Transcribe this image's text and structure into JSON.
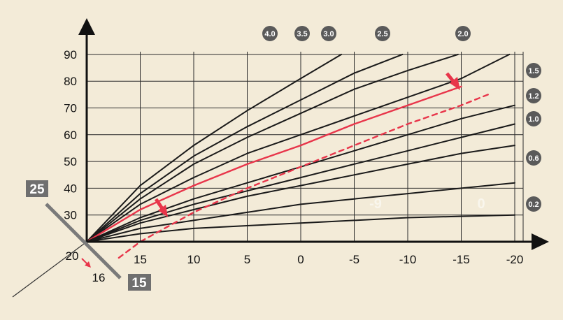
{
  "chart_data": {
    "type": "line",
    "title": "",
    "xlabel": "",
    "ylabel": "",
    "x_ticks": [
      15,
      10,
      5,
      0,
      -5,
      -10,
      -15,
      -20
    ],
    "y_ticks": [
      90,
      80,
      70,
      60,
      50,
      40,
      30
    ],
    "x_tick_labels": [
      "15",
      "10",
      "5",
      "0",
      "-5",
      "-10",
      "-15",
      "-20"
    ],
    "y_tick_labels": [
      "90",
      "80",
      "70",
      "60",
      "50",
      "40",
      "30"
    ],
    "xlim": [
      20,
      -20
    ],
    "ylim": [
      20,
      90
    ],
    "grid": true,
    "origin": {
      "x": 20,
      "y": 20
    },
    "series": [
      {
        "name": "4.0",
        "color": "#1a1a1a",
        "style": "solid",
        "x": [
          20,
          15,
          10,
          5,
          0,
          -3.8
        ],
        "y": [
          20,
          41,
          56,
          69,
          81,
          90
        ]
      },
      {
        "name": "3.5",
        "color": "#1a1a1a",
        "style": "solid",
        "x": [
          20,
          15,
          10,
          5,
          0,
          -5,
          -9.5
        ],
        "y": [
          20,
          38,
          52,
          63,
          73,
          83,
          90
        ]
      },
      {
        "name": "3.0",
        "color": "#1a1a1a",
        "style": "solid",
        "x": [
          20,
          15,
          10,
          5,
          0,
          -5,
          -10,
          -14.7
        ],
        "y": [
          20,
          36,
          49,
          59,
          68,
          77,
          84,
          90
        ]
      },
      {
        "name": "2.5",
        "color": "#1a1a1a",
        "style": "solid",
        "x": [
          20,
          15,
          10,
          5,
          0,
          -5,
          -10,
          -15,
          -19.5
        ],
        "y": [
          20,
          34,
          44,
          53,
          60,
          67,
          74,
          81,
          90
        ]
      },
      {
        "name": "2.0",
        "color": "#e8354a",
        "style": "solid",
        "x": [
          20,
          15,
          10,
          5,
          0,
          -5,
          -10,
          -15
        ],
        "y": [
          20,
          32,
          41,
          49,
          56,
          64,
          71,
          78
        ]
      },
      {
        "name": "1.5",
        "color": "#1a1a1a",
        "style": "solid",
        "x": [
          20,
          15,
          10,
          5,
          0,
          -5,
          -10,
          -15,
          -20
        ],
        "y": [
          20,
          29,
          36,
          42,
          48,
          54,
          60,
          66,
          71
        ]
      },
      {
        "name": "1.2",
        "color": "#1a1a1a",
        "style": "solid",
        "x": [
          20,
          15,
          10,
          5,
          0,
          -5,
          -10,
          -15,
          -20
        ],
        "y": [
          20,
          28,
          34,
          39,
          44,
          49,
          54,
          59,
          64
        ]
      },
      {
        "name": "1.0",
        "color": "#1a1a1a",
        "style": "solid",
        "x": [
          20,
          15,
          10,
          5,
          0,
          -5,
          -10,
          -15,
          -20
        ],
        "y": [
          20,
          27,
          32,
          37,
          41,
          45,
          49,
          53,
          56
        ]
      },
      {
        "name": "0.6",
        "color": "#1a1a1a",
        "style": "solid",
        "x": [
          20,
          15,
          10,
          5,
          0,
          -5,
          -10,
          -15,
          -20
        ],
        "y": [
          20,
          25,
          28,
          31,
          34,
          36,
          38,
          40,
          42
        ]
      },
      {
        "name": "0.2",
        "color": "#1a1a1a",
        "style": "solid",
        "x": [
          20,
          15,
          10,
          5,
          0,
          -5,
          -10,
          -15,
          -20
        ],
        "y": [
          20,
          23,
          25,
          26,
          27,
          28,
          29,
          29.5,
          30
        ]
      },
      {
        "name": "",
        "color": "#e8354a",
        "style": "dashed",
        "x": [
          17,
          15,
          10,
          5,
          0,
          -5,
          -10,
          -15,
          -17.5
        ],
        "y": [
          14,
          20,
          31,
          40,
          48,
          56,
          64,
          71,
          75
        ]
      }
    ]
  },
  "annotations": {
    "curve_labels": [
      "4.0",
      "3.5",
      "3.0",
      "2.5",
      "2.0",
      "1.5",
      "1.2",
      "1.0",
      "0.6",
      "0.2"
    ],
    "corner_left_value": "20",
    "corner_shift_value": "16",
    "box_upper_value": "25",
    "box_lower_value": "15",
    "faint_label_a": "-9",
    "faint_label_b": "0"
  },
  "colors": {
    "background": "#f3ebd8",
    "grid": "#2b2b2b",
    "axis": "#111111",
    "curve": "#1a1a1a",
    "highlight": "#e8354a",
    "badge": "#5a5a5a",
    "box": "#6f6f6f",
    "faint_text": "#ffffff"
  }
}
